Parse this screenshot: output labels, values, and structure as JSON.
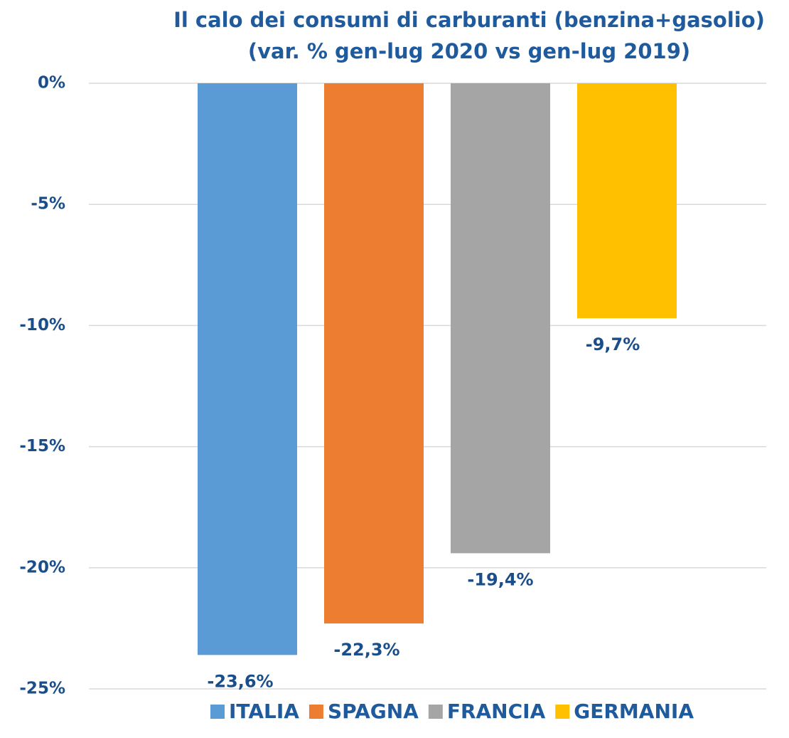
{
  "chart_data": {
    "type": "bar",
    "title": "Il calo dei consumi di carburanti (benzina+gasolio)",
    "subtitle": "(var. % gen-lug 2020 vs gen-lug 2019)",
    "series": [
      {
        "name": "ITALIA",
        "color": "#5b9bd5",
        "values": [
          -23.6
        ],
        "value_labels": [
          "-23,6%"
        ]
      },
      {
        "name": "SPAGNA",
        "color": "#ed7d31",
        "values": [
          -22.3
        ],
        "value_labels": [
          "-22,3%"
        ]
      },
      {
        "name": "FRANCIA",
        "color": "#a5a5a5",
        "values": [
          -19.4
        ],
        "value_labels": [
          "-19,4%"
        ]
      },
      {
        "name": "GERMANIA",
        "color": "#ffc000",
        "values": [
          -9.7
        ],
        "value_labels": [
          "-9,7%"
        ]
      }
    ],
    "ylim": [
      -25,
      0
    ],
    "yticks": [
      {
        "value": 0,
        "label": "0%"
      },
      {
        "value": -5,
        "label": "-5%"
      },
      {
        "value": -10,
        "label": "-10%"
      },
      {
        "value": -15,
        "label": "-15%"
      },
      {
        "value": -20,
        "label": "-20%"
      },
      {
        "value": -25,
        "label": "-25%"
      }
    ],
    "grid": true,
    "legend": "bottom"
  }
}
